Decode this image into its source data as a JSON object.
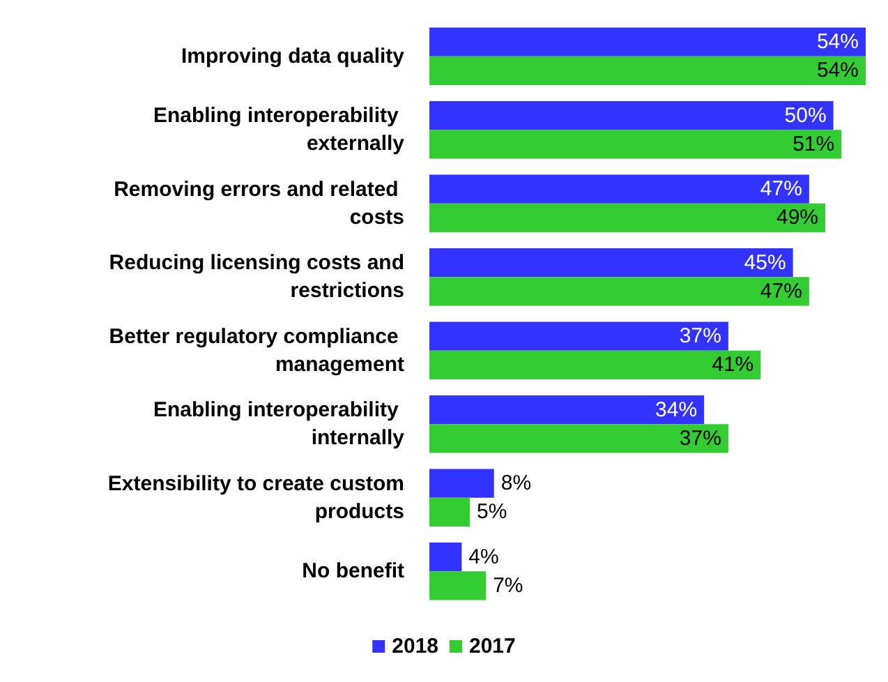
{
  "chart_data": {
    "type": "bar",
    "orientation": "horizontal",
    "categories": [
      "Improving data quality",
      "Enabling interoperability externally",
      "Removing errors and related costs",
      "Reducing licensing costs and restrictions",
      "Better regulatory compliance management",
      "Enabling interoperability internally",
      "Extensibility to create custom products",
      "No benefit"
    ],
    "series": [
      {
        "name": "2018",
        "color": "#3333ff",
        "values": [
          54,
          50,
          47,
          45,
          37,
          34,
          8,
          4
        ],
        "value_labels": [
          "54%",
          "50%",
          "47%",
          "45%",
          "37%",
          "34%",
          "8%",
          "4%"
        ]
      },
      {
        "name": "2017",
        "color": "#33cc33",
        "values": [
          54,
          51,
          49,
          47,
          41,
          37,
          5,
          7
        ],
        "value_labels": [
          "54%",
          "51%",
          "49%",
          "47%",
          "41%",
          "37%",
          "5%",
          "7%"
        ]
      }
    ],
    "legend": "bottom"
  }
}
